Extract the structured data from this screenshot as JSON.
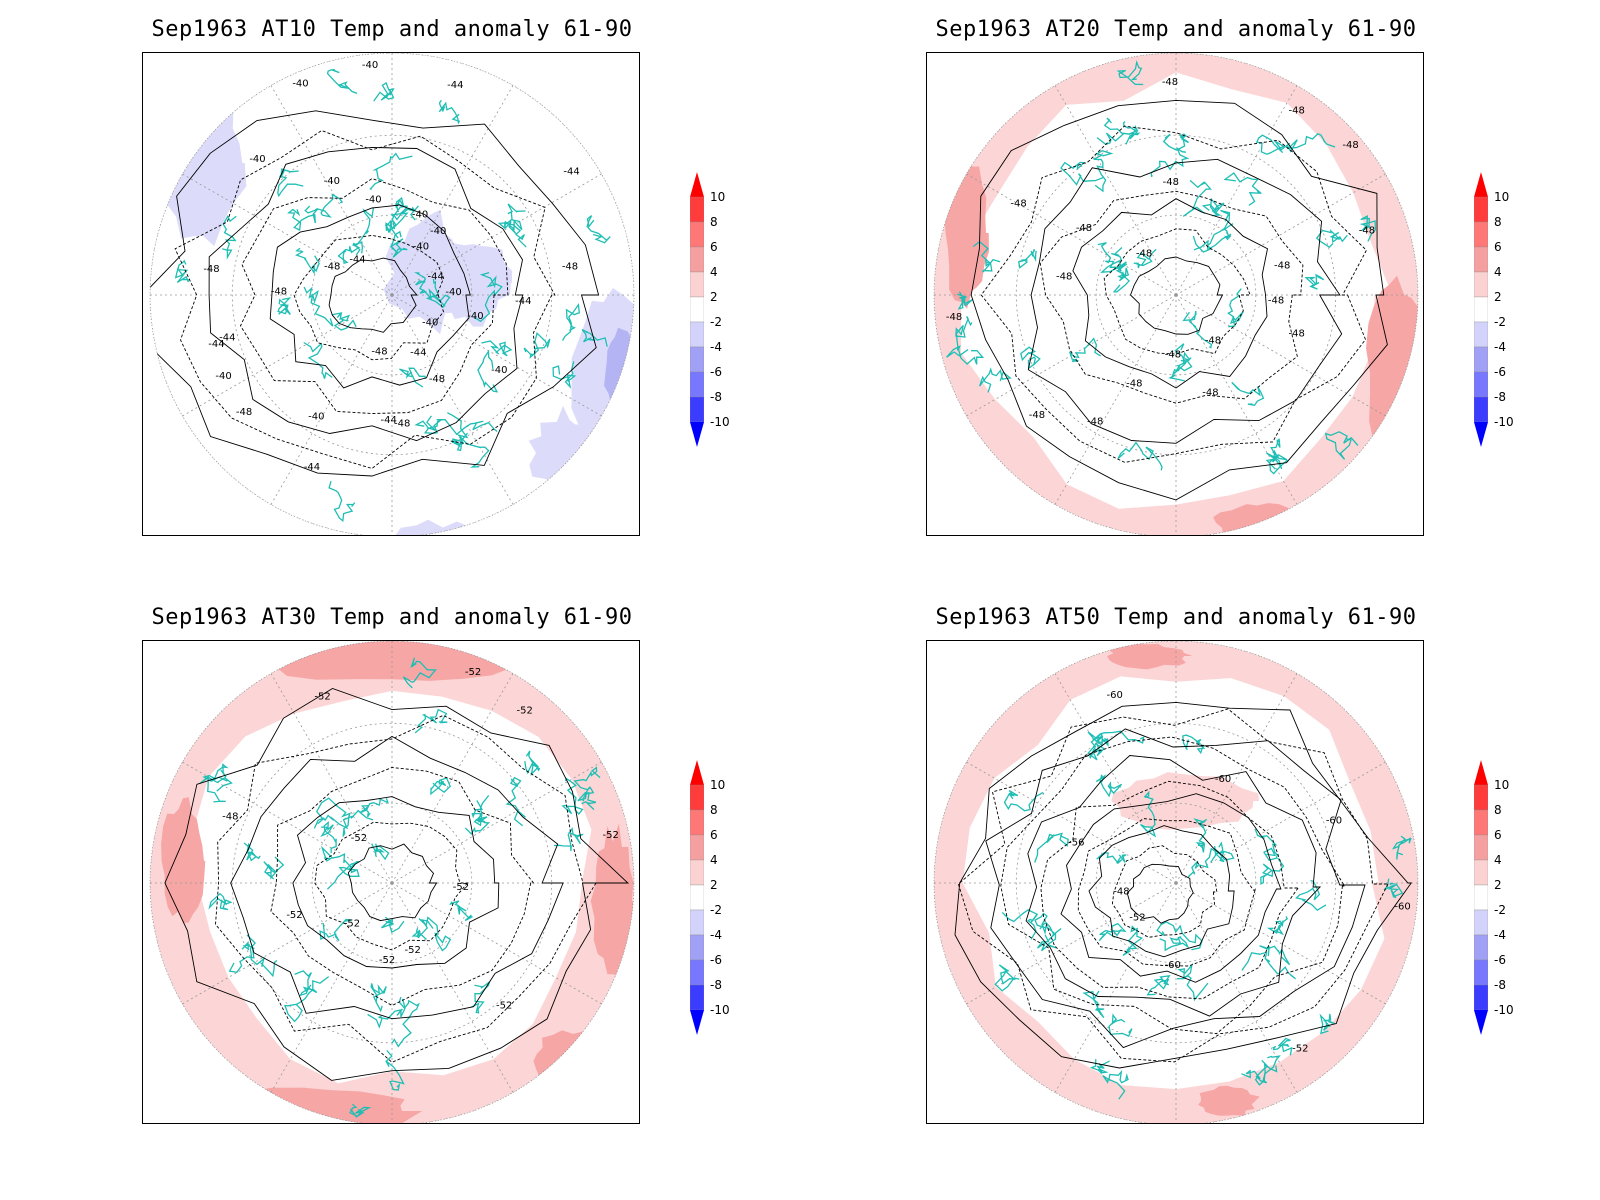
{
  "panels": [
    {
      "title": "Sep1963 AT10 Temp and anomaly 61-90",
      "contour_labels": [
        "-44",
        "-40",
        "-40",
        "-40",
        "-44",
        "-48",
        "-48",
        "-44",
        "-48",
        "-44",
        "-40",
        "-48",
        "-40",
        "-44",
        "-44",
        "-48",
        "-48",
        "-48",
        "-44",
        "-40",
        "-40",
        "-40",
        "-40",
        "-40",
        "-44",
        "-40",
        "-40",
        "-40",
        "-44",
        "-44",
        "-40",
        "-48"
      ],
      "anomaly_style": "cool"
    },
    {
      "title": "Sep1963 AT20 Temp and anomaly 61-90",
      "contour_labels": [
        "-48",
        "-48",
        "-48",
        "-48",
        "-48",
        "-48",
        "-48",
        "-48",
        "-48",
        "-48",
        "-48",
        "-48",
        "-48",
        "-48",
        "-48",
        "-48",
        "-48",
        "-48",
        "-48"
      ],
      "anomaly_style": "warm-ring"
    },
    {
      "title": "Sep1963 AT30 Temp and anomaly 61-90",
      "contour_labels": [
        "-52",
        "-52",
        "-52",
        "-52",
        "-52",
        "-52",
        "-48",
        "-52",
        "-52",
        "-52",
        "-52",
        "-52"
      ],
      "anomaly_style": "warm-ring-strong"
    },
    {
      "title": "Sep1963 AT50 Temp and anomaly 61-90",
      "contour_labels": [
        "-60",
        "-52",
        "-60",
        "-52",
        "-48",
        "-56",
        "-60",
        "-60",
        "-60"
      ],
      "anomaly_style": "warm-ring-light"
    }
  ],
  "colorbar": {
    "labels": [
      "10",
      "8",
      "6",
      "4",
      "2",
      "-2",
      "-4",
      "-6",
      "-8",
      "-10"
    ],
    "colors": [
      "#ff0000",
      "#ff3c3c",
      "#ff7878",
      "#f5a0a0",
      "#fad2d2",
      "#ffffff",
      "#d2d2fa",
      "#a0a0f5",
      "#7878ff",
      "#3c3cff",
      "#0000ff"
    ]
  },
  "colors": {
    "coastline": "#1ebeb4",
    "contour": "#000000",
    "grid": "#999999",
    "warm_light": "#fcd6d6",
    "warm_mid": "#f7a6a6",
    "cool_light": "#dcdcfa",
    "cool_mid": "#b4b4f5"
  }
}
